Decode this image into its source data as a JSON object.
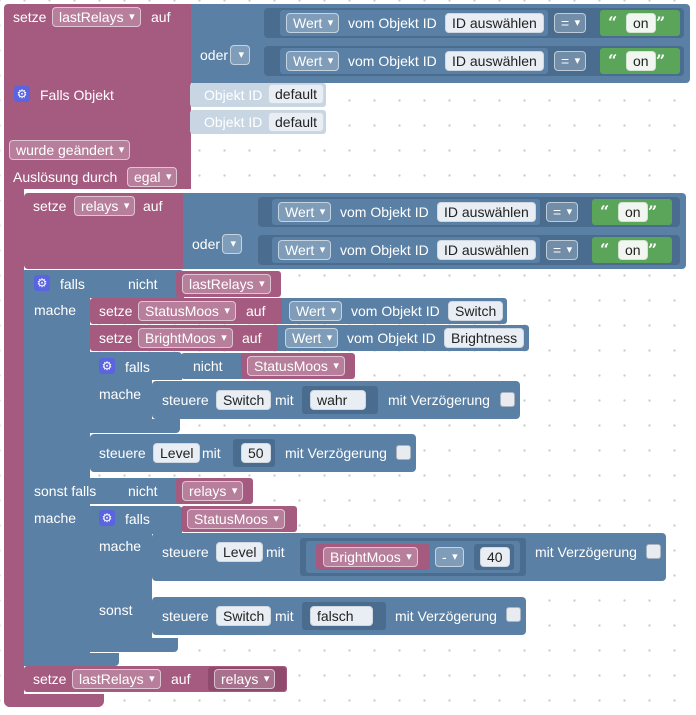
{
  "colors": {
    "variable": "#a55b80",
    "logic": "#5b80a5",
    "text": "#5ba55b",
    "gear": "#5a64e0"
  },
  "block1": {
    "set": "setze",
    "var": "lastRelays",
    "to": "auf",
    "or": "oder",
    "row1": {
      "prop": "Wert",
      "of": "vom Objekt ID",
      "id": "ID auswählen",
      "op": "=",
      "value": "on"
    },
    "row2": {
      "prop": "Wert",
      "of": "vom Objekt ID",
      "id": "ID auswählen",
      "op": "=",
      "value": "on"
    }
  },
  "trigger": {
    "title": "Falls Objekt",
    "id_label": "Objekt ID",
    "id1": "default",
    "id2": "default",
    "changed": "wurde geändert",
    "cause": "Auslösung durch",
    "cause_value": "egal"
  },
  "block2": {
    "set": "setze",
    "var": "relays",
    "to": "auf",
    "or": "oder",
    "row1": {
      "prop": "Wert",
      "of": "vom Objekt ID",
      "id": "ID auswählen",
      "op": "=",
      "value": "on"
    },
    "row2": {
      "prop": "Wert",
      "of": "vom Objekt ID",
      "id": "ID auswählen",
      "op": "=",
      "value": "on"
    }
  },
  "if1": {
    "if": "falls",
    "not": "nicht",
    "cond": "lastRelays",
    "do": "mache"
  },
  "set_statusmoos": {
    "set": "setze",
    "var": "StatusMoos",
    "to": "auf",
    "prop": "Wert",
    "of": "vom Objekt ID",
    "id": "Switch"
  },
  "set_brightmoos": {
    "set": "setze",
    "var": "BrightMoos",
    "to": "auf",
    "prop": "Wert",
    "of": "vom Objekt ID",
    "id": "Brightness"
  },
  "if_inner": {
    "if": "falls",
    "not": "nicht",
    "cond": "StatusMoos",
    "do": "mache"
  },
  "ctl_switch_true": {
    "ctl": "steuere",
    "target": "Switch",
    "with": "mit",
    "value": "wahr",
    "delay": "mit Verzögerung"
  },
  "ctl_level_50": {
    "ctl": "steuere",
    "target": "Level",
    "with": "mit",
    "value": "50",
    "delay": "mit Verzögerung"
  },
  "elseif": {
    "label": "sonst falls",
    "not": "nicht",
    "cond": "relays",
    "do": "mache"
  },
  "if2": {
    "if": "falls",
    "cond": "StatusMoos",
    "do": "mache",
    "else": "sonst"
  },
  "ctl_level_calc": {
    "ctl": "steuere",
    "target": "Level",
    "with": "mit",
    "var": "BrightMoos",
    "op": "-",
    "num": "40",
    "delay": "mit Verzögerung"
  },
  "ctl_switch_false": {
    "ctl": "steuere",
    "target": "Switch",
    "with": "mit",
    "value": "falsch",
    "delay": "mit Verzögerung"
  },
  "block_last": {
    "set": "setze",
    "var": "lastRelays",
    "to": "auf",
    "value": "relays"
  }
}
